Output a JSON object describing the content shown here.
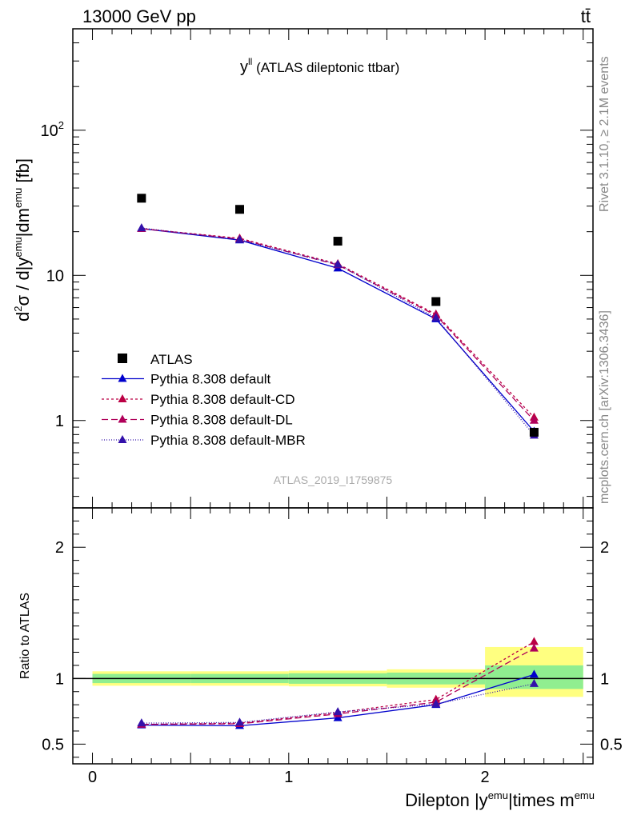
{
  "header": {
    "energy_label": "13000 GeV pp",
    "process_label": "tt̄"
  },
  "side_labels": {
    "rivet": "Rivet 3.1.10, ≥ 2.1M events",
    "mcplots": "mcplots.cern.ch [arXiv:1306.3436]"
  },
  "chart_data": {
    "type": "line",
    "title_main": "y",
    "title_sup": "ll",
    "title_rest": " (ATLAS dileptonic ttbar)",
    "analysis_id": "ATLAS_2019_I1759875",
    "ylabel_parts": {
      "a": "d",
      "a_sup": "2",
      "b": "σ / d|y",
      "b_sup": "emu",
      "c": "|dm",
      "c_sup": "emu",
      "d": " [fb]"
    },
    "xlabel_parts": {
      "a": "Dilepton |y",
      "a_sup": "emu",
      "b": "|times m",
      "b_sup": "emu"
    },
    "ratio_ylabel": "Ratio to ATLAS",
    "xlim": [
      -0.1,
      2.55
    ],
    "main_ylim": [
      0.25,
      500
    ],
    "main_scale": "log",
    "ratio_ylim": [
      0.35,
      2.3
    ],
    "x_ticks": [
      "0",
      "1",
      "2"
    ],
    "main_y_ticks": [
      "1",
      "10",
      "10^2"
    ],
    "ratio_y_ticks": [
      "0.5",
      "1",
      "2"
    ],
    "legend_position": "bottom-left",
    "bins": [
      [
        0,
        0.5
      ],
      [
        0.5,
        1.0
      ],
      [
        1.0,
        1.5
      ],
      [
        1.5,
        2.0
      ],
      [
        2.0,
        2.5
      ]
    ],
    "x": [
      0.25,
      0.75,
      1.25,
      1.75,
      2.25
    ],
    "data": {
      "name": "ATLAS",
      "values": [
        34,
        28.5,
        17.2,
        6.6,
        0.83
      ],
      "color": "#000000"
    },
    "ratio_bands": {
      "yellow": [
        [
          0.945,
          1.055
        ],
        [
          0.945,
          1.055
        ],
        [
          0.94,
          1.06
        ],
        [
          0.93,
          1.07
        ],
        [
          0.86,
          1.24
        ]
      ],
      "green": [
        [
          0.965,
          1.035
        ],
        [
          0.965,
          1.035
        ],
        [
          0.96,
          1.04
        ],
        [
          0.955,
          1.045
        ],
        [
          0.92,
          1.1
        ]
      ]
    },
    "series": [
      {
        "name": "Pythia 8.308 default",
        "color": "#0000cc",
        "dash": "solid",
        "values": [
          21,
          17.5,
          11.2,
          5.0,
          0.84
        ],
        "ratio": [
          0.645,
          0.64,
          0.7,
          0.8,
          1.03
        ]
      },
      {
        "name": "Pythia 8.308 default-CD",
        "color": "#bb0044",
        "dash": "3,3",
        "values": [
          21,
          18,
          12,
          5.4,
          1.05
        ],
        "ratio": [
          0.65,
          0.66,
          0.74,
          0.84,
          1.28
        ]
      },
      {
        "name": "Pythia 8.308 default-DL",
        "color": "#b0005a",
        "dash": "8,4",
        "values": [
          21,
          17.8,
          11.8,
          5.3,
          1.0
        ],
        "ratio": [
          0.65,
          0.655,
          0.73,
          0.82,
          1.23
        ]
      },
      {
        "name": "Pythia 8.308 default-MBR",
        "color": "#3311aa",
        "dash": "1,2",
        "values": [
          21.2,
          17.6,
          11.9,
          5.1,
          0.79
        ],
        "ratio": [
          0.66,
          0.665,
          0.745,
          0.805,
          0.96
        ]
      }
    ]
  }
}
